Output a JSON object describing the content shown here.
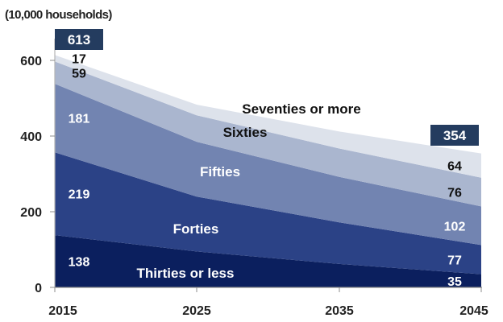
{
  "chart_data": {
    "type": "area",
    "stacked": true,
    "unit_label": "(10,000 households)",
    "x": [
      2015,
      2025,
      2035,
      2045
    ],
    "x_ticks": [
      "2015",
      "2025",
      "2035",
      "2045"
    ],
    "y_ticks": [
      "0",
      "200",
      "400",
      "600"
    ],
    "ylim": [
      0,
      640
    ],
    "grid": false,
    "colors": {
      "Thirties or less": "#0b1f5e",
      "Forties": "#2b4286",
      "Fifties": "#7284b1",
      "Sixties": "#aab6cf",
      "Seventies or more": "#dde2eb",
      "total_box": "#243c5f"
    },
    "series": [
      {
        "name": "Thirties or less",
        "values": [
          138,
          95,
          62,
          35
        ],
        "labels": [
          "138",
          "",
          "",
          "35"
        ]
      },
      {
        "name": "Forties",
        "values": [
          219,
          145,
          110,
          77
        ],
        "labels": [
          "219",
          "",
          "",
          "77"
        ]
      },
      {
        "name": "Fifties",
        "values": [
          181,
          145,
          120,
          102
        ],
        "labels": [
          "181",
          "",
          "",
          "102"
        ]
      },
      {
        "name": "Sixties",
        "values": [
          59,
          70,
          75,
          76
        ],
        "labels": [
          "59",
          "",
          "",
          "76"
        ]
      },
      {
        "name": "Seventies or more",
        "values": [
          17,
          28,
          45,
          64
        ],
        "labels": [
          "17",
          "",
          "",
          "64"
        ]
      }
    ],
    "totals": [
      "613",
      "",
      "",
      "354"
    ]
  }
}
